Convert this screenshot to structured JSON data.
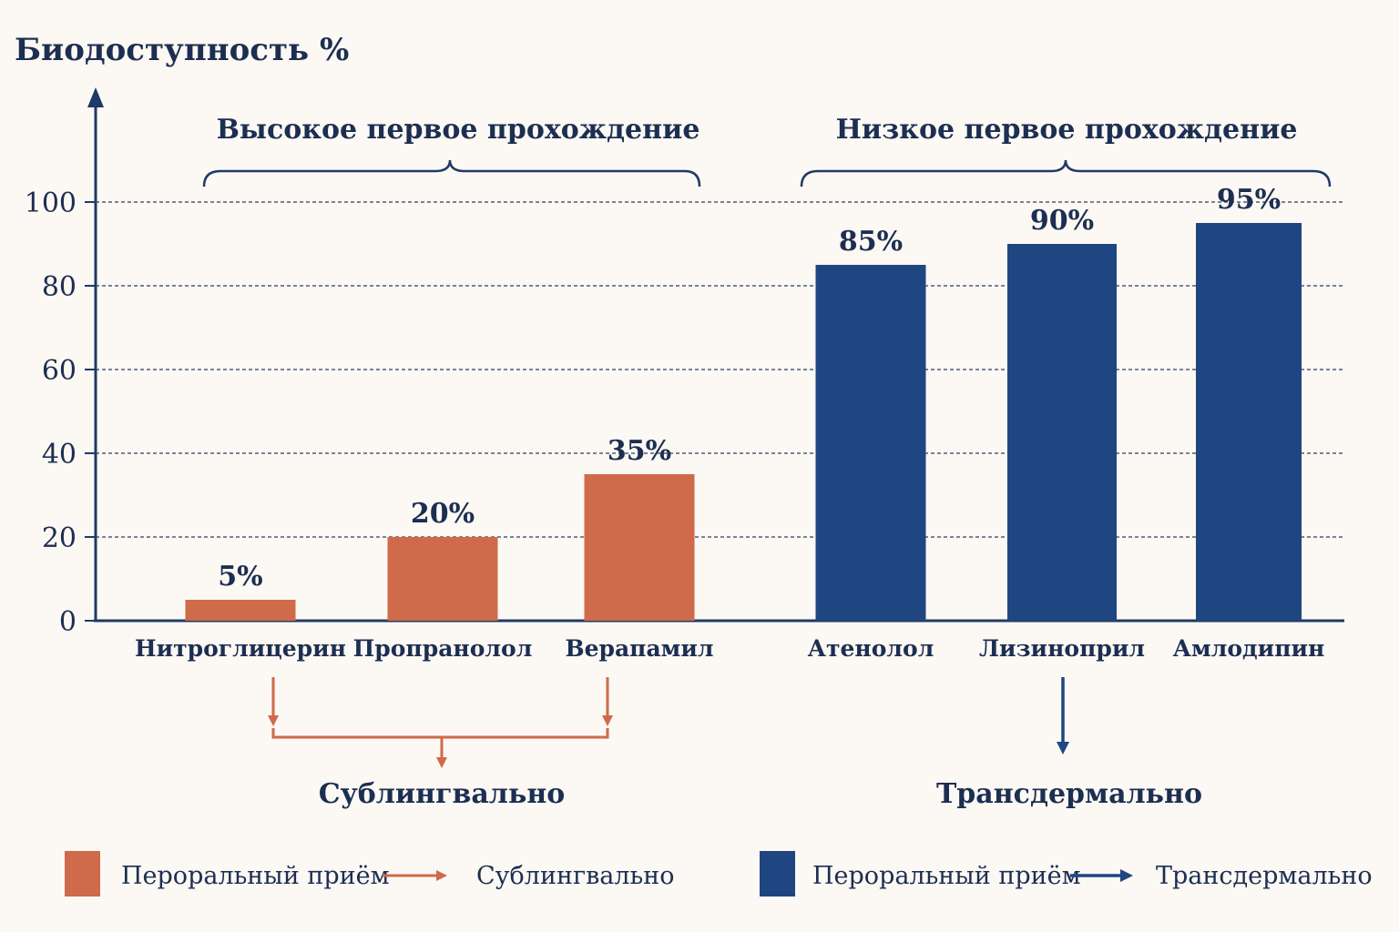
{
  "chart_data": {
    "type": "bar",
    "ylabel": "Биодоступность %",
    "ylim": [
      0,
      105
    ],
    "yticks": [
      0,
      20,
      40,
      60,
      80,
      100
    ],
    "grid": true,
    "groups": [
      {
        "label": "Высокое первое прохождение",
        "categories": [
          "Нитроглицерин",
          "Пропранолол",
          "Верапамил"
        ],
        "route": "Сублингвально"
      },
      {
        "label": "Низкое первое прохождение",
        "categories": [
          "Атенолол",
          "Лизиноприл",
          "Амлодипин"
        ],
        "route": "Трансдермально"
      }
    ],
    "categories": [
      "Нитроглицерин",
      "Пропранолол",
      "Верапамил",
      "Атенолол",
      "Лизиноприл",
      "Амлодипин"
    ],
    "values": [
      5,
      20,
      35,
      85,
      90,
      95
    ],
    "value_labels": [
      "5%",
      "20%",
      "35%",
      "85%",
      "90%",
      "95%"
    ],
    "bar_colors": [
      "#cf6a4a",
      "#cf6a4a",
      "#cf6a4a",
      "#1f4680",
      "#1f4680",
      "#1f4680"
    ],
    "legend": [
      {
        "swatch": "Пероральный приём",
        "target": "Сублингвально",
        "color": "#cf6a4a"
      },
      {
        "swatch": "Пероральный приём",
        "target": "Трансдермально",
        "color": "#1f4680"
      }
    ],
    "legend_position": "bottom"
  },
  "colors": {
    "axis": "#1e3a66",
    "text": "#1c2e52",
    "grid": "#2a3f66",
    "background": "#fcf8f3"
  }
}
